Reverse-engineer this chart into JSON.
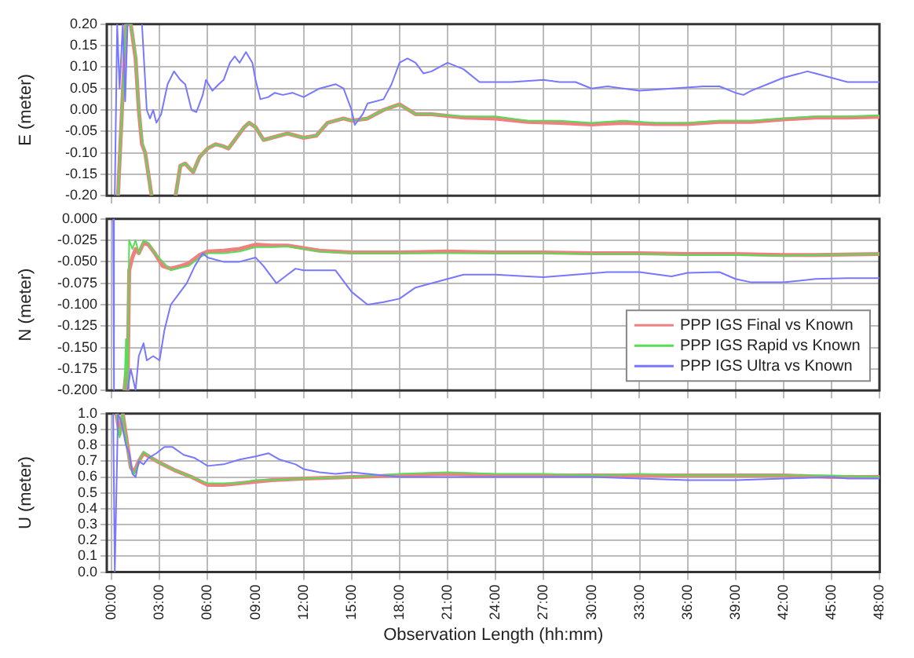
{
  "chart_data": [
    {
      "type": "line",
      "ylabel": "E (meter)",
      "grid": true,
      "tick_labels": "y",
      "xlim": [
        -0.3,
        48
      ],
      "ylim": [
        -0.2,
        0.2
      ],
      "xticks": [
        {
          "value": 0,
          "label": null
        },
        {
          "value": 3,
          "label": null
        },
        {
          "value": 6,
          "label": null
        },
        {
          "value": 9,
          "label": null
        },
        {
          "value": 12,
          "label": null
        },
        {
          "value": 15,
          "label": null
        },
        {
          "value": 18,
          "label": null
        },
        {
          "value": 21,
          "label": null
        },
        {
          "value": 24,
          "label": null
        },
        {
          "value": 27,
          "label": null
        },
        {
          "value": 30,
          "label": null
        },
        {
          "value": 33,
          "label": null
        },
        {
          "value": 36,
          "label": null
        },
        {
          "value": 39,
          "label": null
        },
        {
          "value": 42,
          "label": null
        },
        {
          "value": 45,
          "label": null
        },
        {
          "value": 48,
          "label": null
        }
      ],
      "yticks": [
        {
          "value": -0.2,
          "label": "-0.20"
        },
        {
          "value": -0.15,
          "label": "-0.15"
        },
        {
          "value": -0.1,
          "label": "-0.10"
        },
        {
          "value": -0.05,
          "label": "-0.05"
        },
        {
          "value": 0,
          "label": "0.00"
        },
        {
          "value": 0.05,
          "label": "0.05"
        },
        {
          "value": 0.1,
          "label": "0.10"
        },
        {
          "value": 0.15,
          "label": "0.15"
        },
        {
          "value": 0.2,
          "label": "0.20"
        }
      ],
      "series": [
        {
          "color": "#f08080",
          "x": [
            0.4,
            0.9,
            1.2,
            1.5,
            1.7,
            1.9,
            2.1,
            2.5,
            3.2,
            4.0,
            4.3,
            4.6,
            5.1,
            5.5,
            6,
            6.5,
            7,
            7.3,
            7.8,
            8.3,
            8.6,
            9,
            9.5,
            10,
            11,
            12,
            12.8,
            13.5,
            14.5,
            15,
            16,
            17,
            18,
            19,
            20,
            22,
            24,
            26,
            28,
            30,
            32,
            34,
            36,
            38,
            40,
            42,
            44,
            46,
            48
          ],
          "values": [
            -0.2,
            0.2,
            0.2,
            0.12,
            0.0,
            -0.08,
            -0.1,
            -0.2,
            null,
            -0.2,
            -0.13,
            -0.125,
            -0.145,
            -0.11,
            -0.09,
            -0.08,
            -0.085,
            -0.09,
            -0.065,
            -0.04,
            -0.03,
            -0.04,
            -0.07,
            -0.065,
            -0.055,
            -0.065,
            -0.06,
            -0.03,
            -0.02,
            -0.025,
            -0.02,
            0.0,
            0.013,
            -0.01,
            -0.01,
            -0.018,
            -0.02,
            -0.028,
            -0.03,
            -0.034,
            -0.03,
            -0.033,
            -0.033,
            -0.028,
            -0.028,
            -0.022,
            -0.018,
            -0.018,
            -0.016
          ]
        },
        {
          "color": "#55dd55",
          "x": [
            0.4,
            0.9,
            1.2,
            1.5,
            1.7,
            1.9,
            2.1,
            2.5,
            3.2,
            4.0,
            4.3,
            4.6,
            5.1,
            5.5,
            6,
            6.5,
            7,
            7.3,
            7.8,
            8.3,
            8.6,
            9,
            9.5,
            10,
            11,
            12,
            12.8,
            13.5,
            14.5,
            15,
            16,
            17,
            18,
            19,
            20,
            22,
            24,
            26,
            28,
            30,
            32,
            34,
            36,
            38,
            40,
            42,
            44,
            46,
            48
          ],
          "values": [
            -0.2,
            0.2,
            0.2,
            0.13,
            0.0,
            -0.07,
            -0.1,
            -0.2,
            null,
            -0.2,
            -0.13,
            -0.125,
            -0.145,
            -0.11,
            -0.09,
            -0.08,
            -0.085,
            -0.09,
            -0.065,
            -0.04,
            -0.03,
            -0.04,
            -0.07,
            -0.065,
            -0.055,
            -0.065,
            -0.06,
            -0.03,
            -0.02,
            -0.025,
            -0.02,
            0.0,
            0.013,
            -0.01,
            -0.01,
            -0.015,
            -0.015,
            -0.025,
            -0.025,
            -0.03,
            -0.025,
            -0.03,
            -0.03,
            -0.025,
            -0.025,
            -0.02,
            -0.015,
            -0.015,
            -0.013
          ]
        },
        {
          "color": "#7777ff",
          "x": [
            0.2,
            0.35,
            0.5,
            0.7,
            0.85,
            1.0,
            1.5,
            1.9,
            2.2,
            2.4,
            2.6,
            2.8,
            3.1,
            3.5,
            3.9,
            4.3,
            4.6,
            5.0,
            5.3,
            5.7,
            5.9,
            6.3,
            6.7,
            7.0,
            7.4,
            7.7,
            8.0,
            8.4,
            8.8,
            9.0,
            9.3,
            9.8,
            10.2,
            10.7,
            11.3,
            12,
            13,
            14,
            14.5,
            15,
            15.2,
            15.7,
            16,
            17,
            17.5,
            18,
            18.5,
            19,
            19.5,
            20,
            21,
            22,
            23,
            25,
            27,
            28,
            29,
            30,
            31,
            32,
            33,
            35,
            37,
            38,
            39,
            39.5,
            40,
            41,
            42,
            43.5,
            44,
            45,
            46,
            48
          ],
          "values": [
            -0.2,
            0.2,
            0.05,
            0.2,
            0.02,
            0.2,
            null,
            0.2,
            0.0,
            -0.02,
            0.0,
            -0.03,
            -0.01,
            0.06,
            0.09,
            0.07,
            0.06,
            0.0,
            -0.005,
            0.035,
            0.07,
            0.045,
            0.06,
            0.07,
            0.11,
            0.125,
            0.11,
            0.135,
            0.11,
            0.07,
            0.025,
            0.03,
            0.04,
            0.035,
            0.04,
            0.03,
            0.05,
            0.06,
            0.05,
            0.0,
            -0.035,
            -0.01,
            0.015,
            0.025,
            0.06,
            0.11,
            0.12,
            0.11,
            0.085,
            0.09,
            0.11,
            0.095,
            0.065,
            0.065,
            0.07,
            0.065,
            0.065,
            0.05,
            0.055,
            0.05,
            0.045,
            0.05,
            0.055,
            0.055,
            0.04,
            0.035,
            0.045,
            0.06,
            0.075,
            0.09,
            0.085,
            0.075,
            0.065,
            0.065
          ]
        }
      ]
    },
    {
      "type": "line",
      "ylabel": "N (meter)",
      "grid": true,
      "tick_labels": "y",
      "legend": "bottom right",
      "xlim": [
        -0.3,
        48
      ],
      "ylim": [
        -0.2,
        0
      ],
      "xticks": [
        {
          "value": 0,
          "label": null
        },
        {
          "value": 3,
          "label": null
        },
        {
          "value": 6,
          "label": null
        },
        {
          "value": 9,
          "label": null
        },
        {
          "value": 12,
          "label": null
        },
        {
          "value": 15,
          "label": null
        },
        {
          "value": 18,
          "label": null
        },
        {
          "value": 21,
          "label": null
        },
        {
          "value": 24,
          "label": null
        },
        {
          "value": 27,
          "label": null
        },
        {
          "value": 30,
          "label": null
        },
        {
          "value": 33,
          "label": null
        },
        {
          "value": 36,
          "label": null
        },
        {
          "value": 39,
          "label": null
        },
        {
          "value": 42,
          "label": null
        },
        {
          "value": 45,
          "label": null
        },
        {
          "value": 48,
          "label": null
        }
      ],
      "yticks": [
        {
          "value": -0.2,
          "label": "-0.200"
        },
        {
          "value": -0.175,
          "label": "-0.175"
        },
        {
          "value": -0.15,
          "label": "-0.150"
        },
        {
          "value": -0.125,
          "label": "-0.125"
        },
        {
          "value": -0.1,
          "label": "-0.100"
        },
        {
          "value": -0.075,
          "label": "-0.075"
        },
        {
          "value": -0.05,
          "label": "-0.050"
        },
        {
          "value": -0.025,
          "label": "-0.025"
        },
        {
          "value": 0,
          "label": "0.000"
        }
      ],
      "series": [
        {
          "name": "PPP IGS Final vs Known",
          "color": "#f08080",
          "x": [
            0.8,
            0.9,
            1.0,
            1.1,
            1.3,
            1.5,
            1.7,
            2.0,
            2.3,
            2.7,
            3.2,
            3.7,
            4.3,
            4.8,
            5.5,
            6,
            7,
            8,
            9,
            10,
            11,
            12,
            13,
            15,
            18,
            21,
            24,
            27,
            30,
            33,
            36,
            39,
            42,
            44,
            48
          ],
          "values": [
            -0.2,
            -0.18,
            -0.2,
            -0.06,
            -0.045,
            -0.035,
            -0.04,
            -0.028,
            -0.03,
            -0.04,
            -0.055,
            -0.058,
            -0.055,
            -0.052,
            -0.042,
            -0.038,
            -0.037,
            -0.035,
            -0.03,
            -0.031,
            -0.031,
            -0.034,
            -0.037,
            -0.039,
            -0.039,
            -0.038,
            -0.039,
            -0.039,
            -0.04,
            -0.04,
            -0.041,
            -0.041,
            -0.042,
            -0.042,
            -0.041
          ]
        },
        {
          "name": "PPP IGS Rapid vs Known",
          "color": "#55dd55",
          "x": [
            0.8,
            0.9,
            1.0,
            1.1,
            1.3,
            1.5,
            1.7,
            2.0,
            2.3,
            2.7,
            3.2,
            3.7,
            4.3,
            4.8,
            5.5,
            6,
            7,
            8,
            9,
            10,
            11,
            12,
            13,
            15,
            18,
            21,
            24,
            27,
            30,
            33,
            36,
            39,
            42,
            44,
            48
          ],
          "values": [
            -0.2,
            -0.14,
            -0.2,
            -0.025,
            -0.035,
            -0.025,
            -0.04,
            -0.025,
            -0.028,
            -0.04,
            -0.05,
            -0.06,
            -0.057,
            -0.055,
            -0.045,
            -0.04,
            -0.04,
            -0.038,
            -0.033,
            -0.033,
            -0.032,
            -0.035,
            -0.038,
            -0.04,
            -0.04,
            -0.04,
            -0.04,
            -0.04,
            -0.041,
            -0.041,
            -0.042,
            -0.042,
            -0.043,
            -0.042,
            -0.041
          ]
        },
        {
          "name": "PPP IGS Ultra vs Known",
          "color": "#7777ff",
          "x": [
            0.1,
            0.15,
            0.6,
            1.0,
            1.2,
            1.5,
            1.7,
            2.0,
            2.2,
            2.6,
            3.0,
            3.3,
            3.7,
            4.3,
            4.7,
            5.2,
            5.7,
            6,
            7,
            8,
            9,
            9.5,
            10.3,
            11,
            11.5,
            12,
            13,
            14,
            15,
            16,
            17,
            18,
            19,
            20,
            21,
            22,
            24,
            26,
            27,
            29,
            31,
            33,
            35,
            36,
            38,
            39,
            40,
            42,
            44,
            46,
            48
          ],
          "values": [
            0.0,
            -0.2,
            null,
            -0.2,
            -0.175,
            -0.2,
            -0.16,
            -0.145,
            -0.165,
            -0.16,
            -0.165,
            -0.13,
            -0.1,
            -0.085,
            -0.075,
            -0.055,
            -0.04,
            -0.045,
            -0.05,
            -0.05,
            -0.045,
            -0.055,
            -0.075,
            -0.065,
            -0.058,
            -0.06,
            -0.06,
            -0.06,
            -0.085,
            -0.1,
            -0.097,
            -0.093,
            -0.08,
            -0.075,
            -0.07,
            -0.065,
            -0.065,
            -0.067,
            -0.068,
            -0.065,
            -0.062,
            -0.062,
            -0.067,
            -0.063,
            -0.062,
            -0.07,
            -0.074,
            -0.074,
            -0.07,
            -0.069,
            -0.069
          ]
        }
      ]
    },
    {
      "type": "line",
      "ylabel": "U (meter)",
      "xlabel": "Observation Length (hh:mm)",
      "grid": true,
      "xlim": [
        -0.3,
        48
      ],
      "ylim": [
        0,
        1
      ],
      "xticks": [
        {
          "value": 0,
          "label": "00:00"
        },
        {
          "value": 3,
          "label": "03:00"
        },
        {
          "value": 6,
          "label": "06:00"
        },
        {
          "value": 9,
          "label": "09:00"
        },
        {
          "value": 12,
          "label": "12:00"
        },
        {
          "value": 15,
          "label": "15:00"
        },
        {
          "value": 18,
          "label": "18:00"
        },
        {
          "value": 21,
          "label": "21:00"
        },
        {
          "value": 24,
          "label": "24:00"
        },
        {
          "value": 27,
          "label": "27:00"
        },
        {
          "value": 30,
          "label": "30:00"
        },
        {
          "value": 33,
          "label": "33:00"
        },
        {
          "value": 36,
          "label": "36:00"
        },
        {
          "value": 39,
          "label": "39:00"
        },
        {
          "value": 42,
          "label": "42:00"
        },
        {
          "value": 45,
          "label": "45:00"
        },
        {
          "value": 48,
          "label": "48:00"
        }
      ],
      "yticks": [
        {
          "value": 0,
          "label": "0.0"
        },
        0.1,
        0.2,
        0.3,
        0.4,
        0.5,
        0.6,
        0.7,
        0.8,
        0.9,
        {
          "value": 1,
          "label": "1.0"
        }
      ],
      "series": [
        {
          "color": "#f08080",
          "x": [
            0.3,
            0.5,
            0.7,
            0.9,
            1.2,
            1.4,
            1.7,
            2.0,
            2.5,
            3,
            4,
            5,
            6,
            7,
            8,
            9,
            10,
            12,
            15,
            18,
            21,
            24,
            27,
            30,
            33,
            36,
            39,
            42,
            45,
            48
          ],
          "values": [
            1.0,
            0.87,
            1.0,
            0.86,
            0.66,
            0.63,
            0.7,
            0.75,
            0.72,
            0.69,
            0.64,
            0.6,
            0.55,
            0.55,
            0.56,
            0.57,
            0.58,
            0.59,
            0.6,
            0.61,
            0.62,
            0.61,
            0.61,
            0.61,
            0.61,
            0.61,
            0.61,
            0.61,
            0.6,
            0.6
          ]
        },
        {
          "color": "#55dd55",
          "x": [
            0.3,
            0.5,
            0.7,
            0.9,
            1.2,
            1.4,
            1.7,
            2.0,
            2.5,
            3,
            4,
            5,
            6,
            7,
            8,
            9,
            10,
            12,
            15,
            18,
            21,
            24,
            27,
            30,
            33,
            36,
            39,
            42,
            45,
            48
          ],
          "values": [
            1.0,
            0.85,
            1.0,
            0.85,
            0.65,
            0.62,
            0.7,
            0.76,
            0.72,
            0.69,
            0.64,
            0.6,
            0.56,
            0.56,
            0.56,
            0.58,
            0.58,
            0.59,
            0.6,
            0.62,
            0.63,
            0.62,
            0.62,
            0.61,
            0.62,
            0.61,
            0.61,
            0.61,
            0.61,
            0.6
          ]
        },
        {
          "color": "#7777ff",
          "x": [
            0.1,
            0.2,
            0.4,
            0.6,
            0.9,
            1.1,
            1.3,
            1.5,
            1.7,
            2.0,
            2.3,
            2.8,
            3.3,
            3.8,
            4.5,
            5.2,
            6,
            7,
            8,
            9,
            9.8,
            10.5,
            11.5,
            12,
            13,
            14,
            15,
            16,
            18,
            20,
            21,
            24,
            27,
            30,
            33,
            36,
            39,
            42,
            45,
            46,
            48
          ],
          "values": [
            1.0,
            0.0,
            1.0,
            0.95,
            0.8,
            0.75,
            0.62,
            0.6,
            0.7,
            0.68,
            0.72,
            0.75,
            0.79,
            0.79,
            0.74,
            0.72,
            0.67,
            0.68,
            0.71,
            0.73,
            0.75,
            0.71,
            0.68,
            0.65,
            0.63,
            0.62,
            0.63,
            0.62,
            0.6,
            0.6,
            0.6,
            0.6,
            0.6,
            0.6,
            0.59,
            0.58,
            0.58,
            0.59,
            0.6,
            0.59,
            0.59
          ]
        }
      ]
    }
  ]
}
